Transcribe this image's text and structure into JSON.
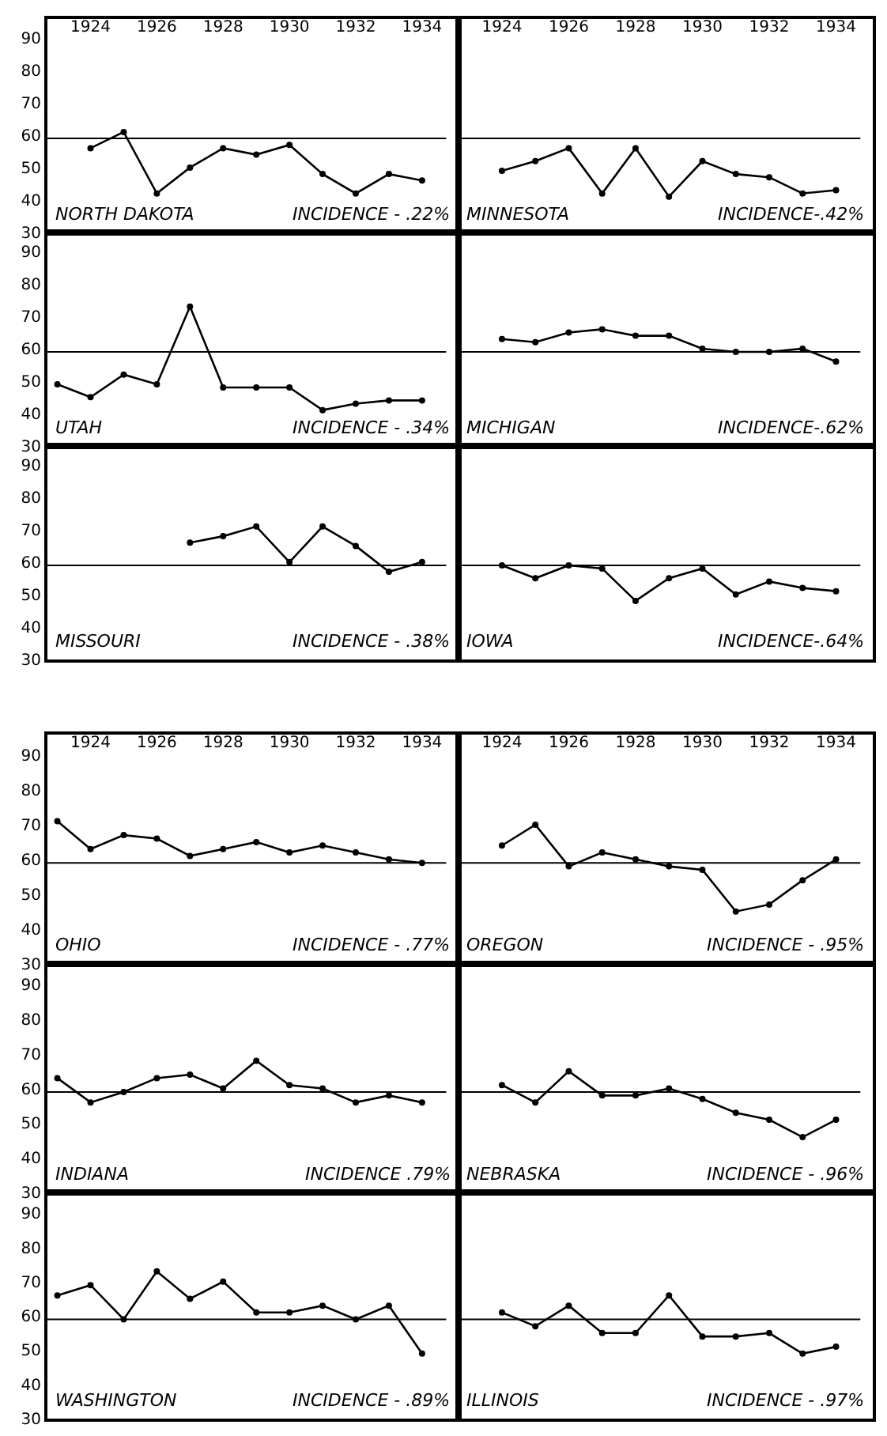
{
  "chart_data": [
    {
      "type": "line",
      "x": [
        1924,
        1925,
        1926,
        1927,
        1928,
        1929,
        1930,
        1931,
        1932,
        1933,
        1934
      ],
      "values": [
        56,
        61,
        42,
        50,
        56,
        54,
        57,
        48,
        42,
        48,
        46
      ],
      "color": "#000000",
      "marker": "circle",
      "xlim": [
        1922.7,
        1935.1
      ],
      "ylim": [
        30,
        96
      ],
      "xticks": [
        1924,
        1926,
        1928,
        1930,
        1932,
        1934
      ],
      "yticks": [
        30,
        40,
        50,
        60,
        70,
        80,
        90
      ],
      "ref_lines": [
        {
          "axis": "y",
          "value": 59
        }
      ],
      "annotations": [
        "NORTH DAKOTA",
        "INCIDENCE - .22%"
      ]
    },
    {
      "type": "line",
      "x": [
        1924,
        1925,
        1926,
        1927,
        1928,
        1929,
        1930,
        1931,
        1932,
        1933,
        1934
      ],
      "values": [
        49,
        52,
        56,
        42,
        56,
        41,
        52,
        48,
        47,
        42,
        43
      ],
      "color": "#000000",
      "marker": "circle",
      "xlim": [
        1922.7,
        1935.1
      ],
      "ylim": [
        30,
        96
      ],
      "xticks": [
        1924,
        1926,
        1928,
        1930,
        1932,
        1934
      ],
      "yticks": [
        30,
        40,
        50,
        60,
        70,
        80,
        90
      ],
      "tick_labels": "x",
      "ref_lines": [
        {
          "axis": "y",
          "value": 59
        }
      ],
      "annotations": [
        "MINNESOTA",
        "INCIDENCE-.42%"
      ]
    },
    {
      "type": "line",
      "x": [
        1923,
        1924,
        1925,
        1926,
        1927,
        1928,
        1929,
        1930,
        1931,
        1932,
        1933,
        1934
      ],
      "values": [
        49,
        45,
        52,
        49,
        73,
        48,
        48,
        48,
        41,
        43,
        44,
        44
      ],
      "color": "#000000",
      "marker": "circle",
      "xlim": [
        1922.7,
        1935.1
      ],
      "ylim": [
        30,
        96
      ],
      "xticks": [
        1924,
        1926,
        1928,
        1930,
        1932,
        1934
      ],
      "yticks": [
        30,
        40,
        50,
        60,
        70,
        80,
        90
      ],
      "tick_labels": "y",
      "ref_lines": [
        {
          "axis": "y",
          "value": 59
        }
      ],
      "annotations": [
        "UTAH",
        "INCIDENCE - .34%"
      ]
    },
    {
      "type": "line",
      "x": [
        1924,
        1925,
        1926,
        1927,
        1928,
        1929,
        1930,
        1931,
        1932,
        1933,
        1934
      ],
      "values": [
        63,
        62,
        65,
        66,
        64,
        64,
        60,
        59,
        59,
        60,
        56
      ],
      "color": "#000000",
      "marker": "circle",
      "xlim": [
        1922.7,
        1935.1
      ],
      "ylim": [
        30,
        96
      ],
      "xticks": [
        1924,
        1926,
        1928,
        1930,
        1932,
        1934
      ],
      "yticks": [
        30,
        40,
        50,
        60,
        70,
        80,
        90
      ],
      "tick_labels": false,
      "ref_lines": [
        {
          "axis": "y",
          "value": 59
        }
      ],
      "annotations": [
        "MICHIGAN",
        "INCIDENCE-.62%"
      ]
    },
    {
      "type": "line",
      "x": [
        1927,
        1928,
        1929,
        1930,
        1931,
        1932,
        1933,
        1934
      ],
      "values": [
        66,
        68,
        71,
        60,
        71,
        65,
        57,
        60
      ],
      "color": "#000000",
      "marker": "circle",
      "xlim": [
        1922.7,
        1935.1
      ],
      "ylim": [
        30,
        96
      ],
      "xticks": [
        1924,
        1926,
        1928,
        1930,
        1932,
        1934
      ],
      "yticks": [
        30,
        40,
        50,
        60,
        70,
        80,
        90
      ],
      "tick_labels": "y",
      "ref_lines": [
        {
          "axis": "y",
          "value": 59
        }
      ],
      "annotations": [
        "MISSOURI",
        "INCIDENCE - .38%"
      ]
    },
    {
      "type": "line",
      "x": [
        1924,
        1925,
        1926,
        1927,
        1928,
        1929,
        1930,
        1931,
        1932,
        1933,
        1934
      ],
      "values": [
        59,
        55,
        59,
        58,
        48,
        55,
        58,
        50,
        54,
        52,
        51
      ],
      "color": "#000000",
      "marker": "circle",
      "xlim": [
        1922.7,
        1935.1
      ],
      "ylim": [
        30,
        96
      ],
      "xticks": [
        1924,
        1926,
        1928,
        1930,
        1932,
        1934
      ],
      "yticks": [
        30,
        40,
        50,
        60,
        70,
        80,
        90
      ],
      "tick_labels": false,
      "ref_lines": [
        {
          "axis": "y",
          "value": 59
        }
      ],
      "annotations": [
        "IOWA",
        "INCIDENCE-.64%"
      ]
    },
    {
      "type": "line",
      "x": [
        1923,
        1924,
        1925,
        1926,
        1927,
        1928,
        1929,
        1930,
        1931,
        1932,
        1933,
        1934
      ],
      "values": [
        71,
        63,
        67,
        66,
        61,
        63,
        65,
        62,
        64,
        62,
        60,
        59
      ],
      "color": "#000000",
      "marker": "circle",
      "xlim": [
        1922.7,
        1935.1
      ],
      "ylim": [
        30,
        96
      ],
      "xticks": [
        1924,
        1926,
        1928,
        1930,
        1932,
        1934
      ],
      "yticks": [
        30,
        40,
        50,
        60,
        70,
        80,
        90
      ],
      "ref_lines": [
        {
          "axis": "y",
          "value": 59
        }
      ],
      "annotations": [
        "OHIO",
        "INCIDENCE - .77%"
      ]
    },
    {
      "type": "line",
      "x": [
        1924,
        1925,
        1926,
        1927,
        1928,
        1929,
        1930,
        1931,
        1932,
        1933,
        1934
      ],
      "values": [
        64,
        70,
        58,
        62,
        60,
        58,
        57,
        45,
        47,
        54,
        60
      ],
      "color": "#000000",
      "marker": "circle",
      "xlim": [
        1922.7,
        1935.1
      ],
      "ylim": [
        30,
        96
      ],
      "xticks": [
        1924,
        1926,
        1928,
        1930,
        1932,
        1934
      ],
      "yticks": [
        30,
        40,
        50,
        60,
        70,
        80,
        90
      ],
      "tick_labels": "x",
      "ref_lines": [
        {
          "axis": "y",
          "value": 59
        }
      ],
      "annotations": [
        "OREGON",
        "INCIDENCE - .95%"
      ]
    },
    {
      "type": "line",
      "x": [
        1923,
        1924,
        1925,
        1926,
        1927,
        1928,
        1929,
        1930,
        1931,
        1932,
        1933,
        1934
      ],
      "values": [
        63,
        56,
        59,
        63,
        64,
        60,
        68,
        61,
        60,
        56,
        58,
        56
      ],
      "color": "#000000",
      "marker": "circle",
      "xlim": [
        1922.7,
        1935.1
      ],
      "ylim": [
        30,
        96
      ],
      "xticks": [
        1924,
        1926,
        1928,
        1930,
        1932,
        1934
      ],
      "yticks": [
        30,
        40,
        50,
        60,
        70,
        80,
        90
      ],
      "tick_labels": "y",
      "ref_lines": [
        {
          "axis": "y",
          "value": 59
        }
      ],
      "annotations": [
        "INDIANA",
        "INCIDENCE .79%"
      ]
    },
    {
      "type": "line",
      "x": [
        1924,
        1925,
        1926,
        1927,
        1928,
        1929,
        1930,
        1931,
        1932,
        1933,
        1934
      ],
      "values": [
        61,
        56,
        65,
        58,
        58,
        60,
        57,
        53,
        51,
        46,
        51
      ],
      "color": "#000000",
      "marker": "circle",
      "xlim": [
        1922.7,
        1935.1
      ],
      "ylim": [
        30,
        96
      ],
      "xticks": [
        1924,
        1926,
        1928,
        1930,
        1932,
        1934
      ],
      "yticks": [
        30,
        40,
        50,
        60,
        70,
        80,
        90
      ],
      "tick_labels": false,
      "ref_lines": [
        {
          "axis": "y",
          "value": 59
        }
      ],
      "annotations": [
        "NEBRASKA",
        "INCIDENCE - .96%"
      ]
    },
    {
      "type": "line",
      "x": [
        1923,
        1924,
        1925,
        1926,
        1927,
        1928,
        1929,
        1930,
        1931,
        1932,
        1933,
        1934
      ],
      "values": [
        66,
        69,
        59,
        73,
        65,
        70,
        61,
        61,
        63,
        59,
        63,
        49
      ],
      "color": "#000000",
      "marker": "circle",
      "xlim": [
        1922.7,
        1935.1
      ],
      "ylim": [
        30,
        96
      ],
      "xticks": [
        1924,
        1926,
        1928,
        1930,
        1932,
        1934
      ],
      "yticks": [
        30,
        40,
        50,
        60,
        70,
        80,
        90
      ],
      "tick_labels": "y",
      "ref_lines": [
        {
          "axis": "y",
          "value": 59
        }
      ],
      "annotations": [
        "WASHINGTON",
        "INCIDENCE - .89%"
      ]
    },
    {
      "type": "line",
      "x": [
        1924,
        1925,
        1926,
        1927,
        1928,
        1929,
        1930,
        1931,
        1932,
        1933,
        1934
      ],
      "values": [
        61,
        57,
        63,
        55,
        55,
        66,
        54,
        54,
        55,
        49,
        51
      ],
      "color": "#000000",
      "marker": "circle",
      "xlim": [
        1922.7,
        1935.1
      ],
      "ylim": [
        30,
        96
      ],
      "xticks": [
        1924,
        1926,
        1928,
        1930,
        1932,
        1934
      ],
      "yticks": [
        30,
        40,
        50,
        60,
        70,
        80,
        90
      ],
      "tick_labels": false,
      "ref_lines": [
        {
          "axis": "y",
          "value": 59
        }
      ],
      "annotations": [
        "ILLINOIS",
        "INCIDENCE - .97%"
      ]
    }
  ]
}
